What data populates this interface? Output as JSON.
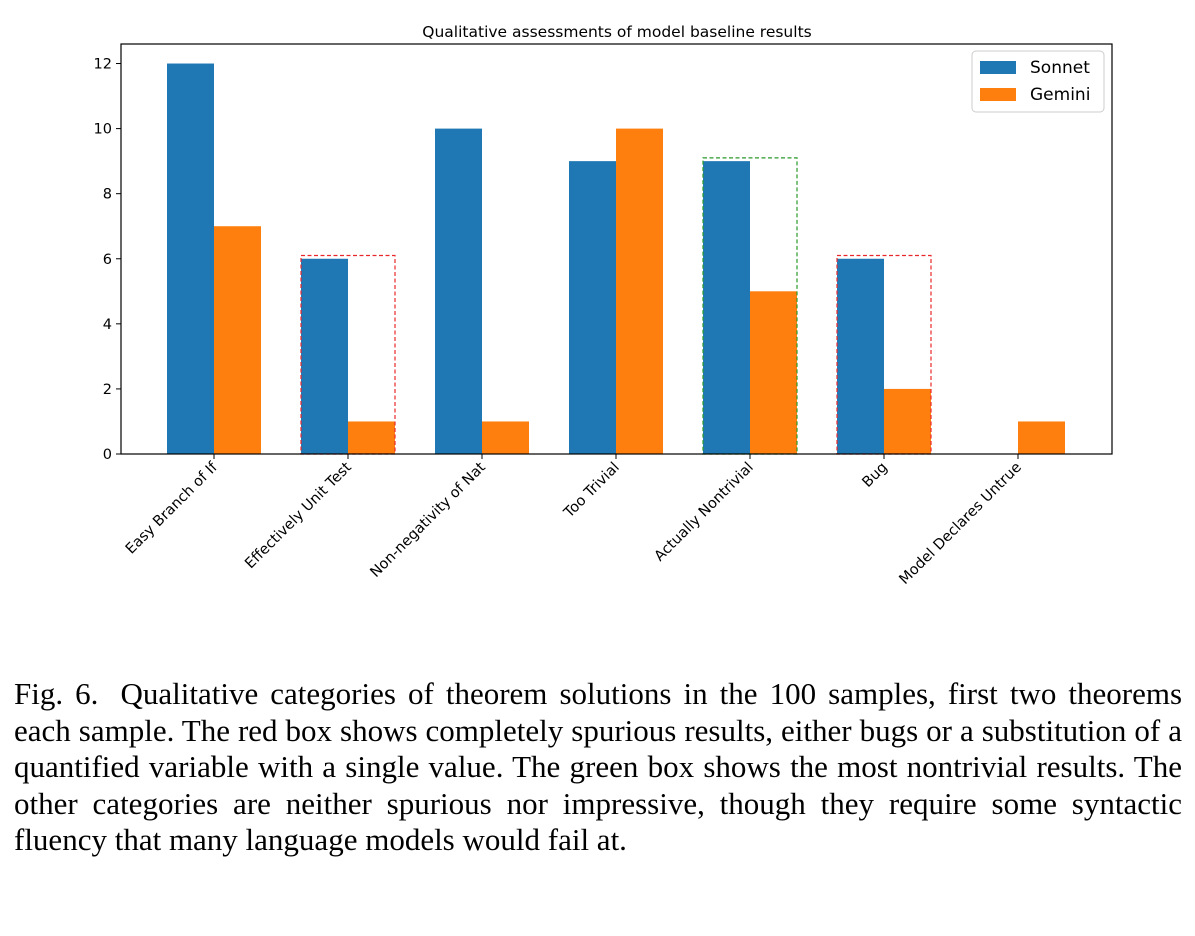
{
  "chart_data": {
    "type": "bar",
    "title": "Qualitative assessments of model baseline results",
    "categories": [
      "Easy Branch of If",
      "Effectively Unit Test",
      "Non-negativity of Nat",
      "Too Trivial",
      "Actually Nontrivial",
      "Bug",
      "Model Declares Untrue"
    ],
    "series": [
      {
        "name": "Sonnet",
        "color": "#1f77b4",
        "values": [
          12,
          6,
          10,
          9,
          9,
          6,
          0
        ]
      },
      {
        "name": "Gemini",
        "color": "#ff7f0e",
        "values": [
          7,
          1,
          1,
          10,
          5,
          2,
          1
        ]
      }
    ],
    "ylim": [
      0,
      12.6
    ],
    "yticks": [
      0,
      2,
      4,
      6,
      8,
      10,
      12
    ],
    "xlabel": "",
    "ylabel": "",
    "grid": false,
    "legend": "top-right",
    "highlight_boxes": [
      {
        "category": "Effectively Unit Test",
        "color": "#e8282b",
        "top": 6.1
      },
      {
        "category": "Actually Nontrivial",
        "color": "#2a9a2a",
        "top": 9.1
      },
      {
        "category": "Bug",
        "color": "#e8282b",
        "top": 6.1
      }
    ]
  },
  "caption": {
    "label": "Fig. 6.",
    "text": "Qualitative categories of theorem solutions in the 100 samples, first two theorems each sample. The red box shows completely spurious results, either bugs or a substitution of a quantified variable with a single value. The green box shows the most nontrivial results. The other categories are neither spurious nor impressive, though they require some syntactic fluency that many language models would fail at."
  }
}
